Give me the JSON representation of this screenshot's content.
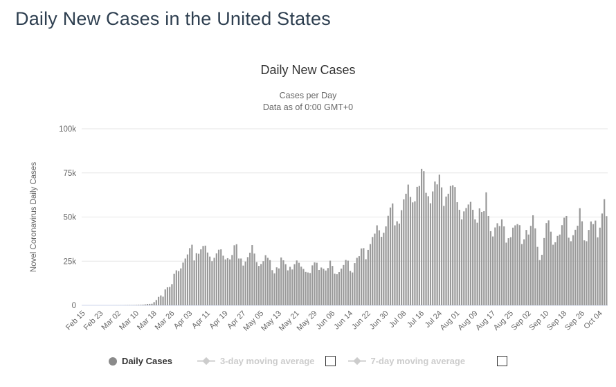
{
  "page": {
    "title": "Daily New Cases in the United States"
  },
  "chart": {
    "title": "Daily New Cases",
    "subtitle1": "Cases per Day",
    "subtitle2": "Data as of 0:00 GMT+0",
    "y_axis_title": "Novel Coronavirus Daily Cases"
  },
  "legend": {
    "daily_cases": "Daily Cases",
    "ma3": "3-day moving average",
    "ma7": "7-day moving average"
  },
  "colors": {
    "page_title": "#2e3f50",
    "chart_title": "#333333",
    "subtitle": "#666666",
    "axis_label": "#666666",
    "bar": "#999999",
    "gridline": "#e6e6e6",
    "axis_line": "#ccd6eb",
    "legend_active": "#333333",
    "legend_disabled": "#cccccc",
    "legend_marker": "#8a8a8a"
  },
  "chart_data": {
    "type": "bar",
    "title": "Daily New Cases",
    "subtitle": "Cases per Day — Data as of 0:00 GMT+0",
    "ylabel": "Novel Coronavirus Daily Cases",
    "ylim": [
      0,
      100000
    ],
    "y_ticks": [
      0,
      25000,
      50000,
      75000,
      100000
    ],
    "y_tick_labels": [
      "0",
      "25k",
      "50k",
      "75k",
      "100k"
    ],
    "x_tick_every": 8,
    "x_tick_labels": [
      "Feb 15",
      "Feb 23",
      "Mar 02",
      "Mar 10",
      "Mar 18",
      "Mar 26",
      "Apr 03",
      "Apr 11",
      "Apr 19",
      "Apr 27",
      "May 05",
      "May 13",
      "May 21",
      "May 29",
      "Jun 06",
      "Jun 14",
      "Jun 22",
      "Jun 30",
      "Jul 08",
      "Jul 16",
      "Jul 24",
      "Aug 01",
      "Aug 09",
      "Aug 17",
      "Aug 25",
      "Sep 02",
      "Sep 10",
      "Sep 18",
      "Sep 26",
      "Oct 04"
    ],
    "series_name": "Daily Cases",
    "grid": true,
    "legend_position": "bottom",
    "values": [
      0,
      0,
      0,
      0,
      0,
      0,
      0,
      0,
      0,
      0,
      0,
      0,
      0,
      0,
      10,
      20,
      20,
      30,
      30,
      70,
      100,
      120,
      100,
      120,
      200,
      270,
      290,
      350,
      510,
      780,
      820,
      890,
      1800,
      3000,
      4800,
      5600,
      4900,
      9000,
      10200,
      10400,
      12000,
      17800,
      19800,
      19400,
      20900,
      24200,
      26500,
      28800,
      32400,
      34300,
      25400,
      29500,
      29200,
      31700,
      33600,
      33800,
      29900,
      27600,
      25000,
      26900,
      29400,
      31500,
      31700,
      28100,
      26000,
      26700,
      26000,
      28500,
      34000,
      34600,
      26500,
      26500,
      22500,
      24800,
      27300,
      29800,
      34100,
      29300,
      24500,
      22300,
      23400,
      25000,
      28400,
      26900,
      25600,
      19900,
      18100,
      21500,
      20900,
      27100,
      25500,
      23300,
      19800,
      21800,
      20300,
      23300,
      25400,
      24100,
      21900,
      20600,
      18900,
      18600,
      18300,
      22600,
      24300,
      24100,
      20000,
      21400,
      20700,
      19700,
      21100,
      25300,
      22300,
      17900,
      17600,
      18800,
      20800,
      22800,
      25700,
      25300,
      19500,
      18600,
      23900,
      26900,
      27800,
      32200,
      32400,
      26100,
      31400,
      34700,
      38700,
      40600,
      45300,
      42500,
      38800,
      41100,
      44700,
      50700,
      55400,
      57700,
      45300,
      47600,
      46300,
      53900,
      60000,
      63200,
      68400,
      61400,
      58300,
      58900,
      67100,
      67600,
      77300,
      76000,
      63700,
      61800,
      57800,
      64500,
      70100,
      68500,
      74000,
      66800,
      56300,
      61600,
      63200,
      67600,
      68000,
      67000,
      58400,
      54100,
      48700,
      53200,
      55100,
      57100,
      58600,
      54100,
      48700,
      46800,
      54900,
      52900,
      53300,
      64000,
      50600,
      42000,
      39000,
      44100,
      46500,
      44900,
      48700,
      44700,
      35500,
      38000,
      38600,
      44000,
      45300,
      46000,
      45400,
      34700,
      37400,
      42700,
      40100,
      45000,
      51000,
      43600,
      33100,
      25600,
      28600,
      38100,
      46600,
      48100,
      41700,
      34300,
      35700,
      39300,
      40100,
      45400,
      49600,
      50600,
      38300,
      36300,
      39700,
      42800,
      45100,
      55000,
      47600,
      36800,
      36300,
      42700,
      47500,
      46000,
      48000,
      38500,
      44000,
      52000,
      60100,
      50500
    ]
  }
}
